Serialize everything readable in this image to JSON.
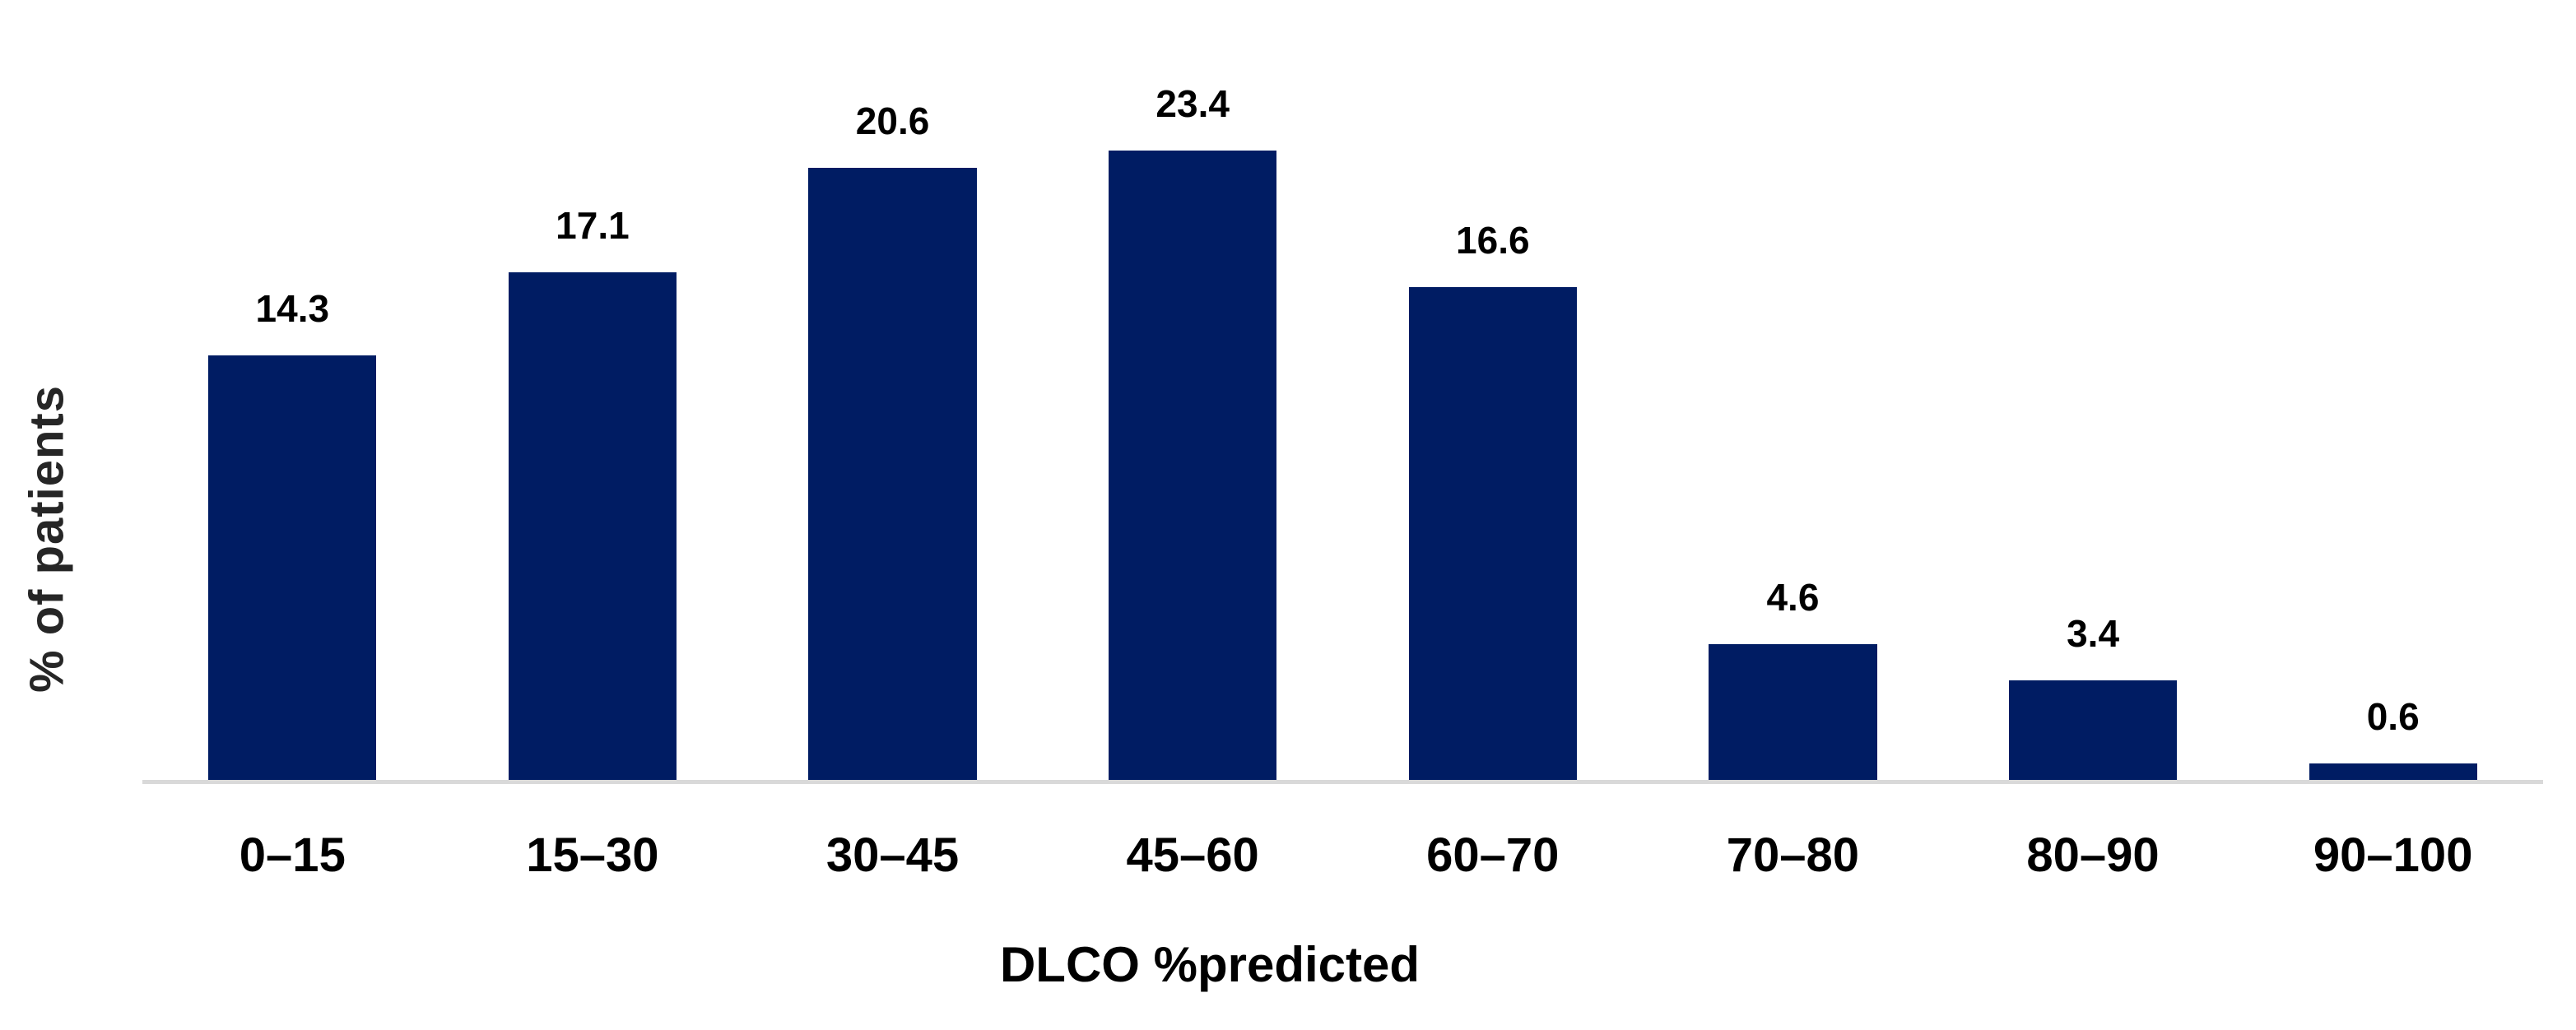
{
  "chart_data": {
    "type": "bar",
    "categories": [
      "0–15",
      "15–30",
      "30–45",
      "45–60",
      "60–70",
      "70–80",
      "80–90",
      "90–100"
    ],
    "values": [
      14.3,
      17.1,
      20.6,
      23.4,
      16.6,
      4.6,
      3.4,
      0.6
    ],
    "title": "",
    "xlabel": "DLCO %predicted",
    "ylabel": "% of patients",
    "ylim": [
      0,
      23.4
    ],
    "grid": false,
    "legend_position": "none",
    "data_labels_shown": true,
    "colors": {
      "bar_fill": "#001c63",
      "axis_line": "#d9d9d9",
      "data_label_text": "#000000",
      "tick_label_text": "#000000",
      "x_axis_title_text": "#000000",
      "y_axis_title_text": "#262626",
      "background": "#ffffff"
    }
  }
}
